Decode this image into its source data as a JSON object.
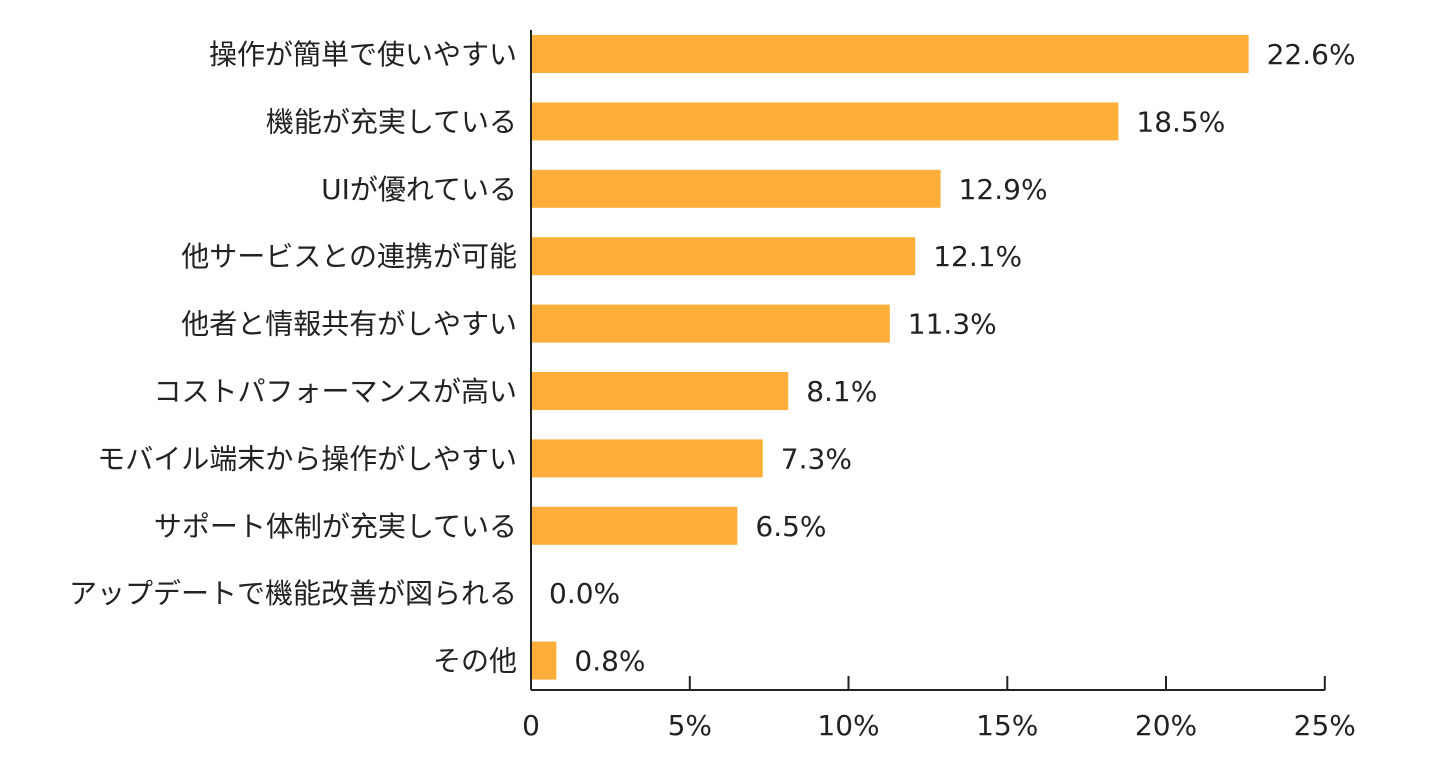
{
  "chart_data": {
    "type": "bar",
    "orientation": "horizontal",
    "title": "",
    "xlabel": "",
    "ylabel": "",
    "xlim": [
      0,
      25
    ],
    "grid": false,
    "legend": "none",
    "bar_color": "#FFAE3A",
    "axis_color": "#222222",
    "categories": [
      "操作が簡単で使いやすい",
      "機能が充実している",
      "UIが優れている",
      "他サービスとの連携が可能",
      "他者と情報共有がしやすい",
      "コストパフォーマンスが高い",
      "モバイル端末から操作がしやすい",
      "サポート体制が充実している",
      "アップデートで機能改善が図られる",
      "その他"
    ],
    "values": [
      22.6,
      18.5,
      12.9,
      12.1,
      11.3,
      8.1,
      7.3,
      6.5,
      0.0,
      0.8
    ],
    "value_labels": [
      "22.6%",
      "18.5%",
      "12.9%",
      "12.1%",
      "11.3%",
      "8.1%",
      "7.3%",
      "6.5%",
      "0.0%",
      "0.8%"
    ],
    "ticks": [
      0,
      5,
      10,
      15,
      20,
      25
    ],
    "tick_labels": [
      "0",
      "5%",
      "10%",
      "15%",
      "20%",
      "25%"
    ]
  }
}
